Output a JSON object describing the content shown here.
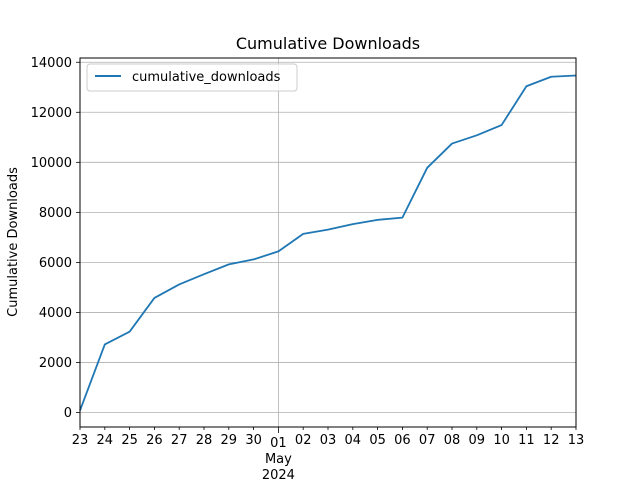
{
  "chart_data": {
    "type": "line",
    "title": "Cumulative Downloads",
    "xlabel": "",
    "ylabel": "Cumulative Downloads",
    "x": [
      "2024-04-23",
      "2024-04-24",
      "2024-04-25",
      "2024-04-26",
      "2024-04-27",
      "2024-04-28",
      "2024-04-29",
      "2024-04-30",
      "2024-05-01",
      "2024-05-02",
      "2024-05-03",
      "2024-05-04",
      "2024-05-05",
      "2024-05-06",
      "2024-05-07",
      "2024-05-08",
      "2024-05-09",
      "2024-05-10",
      "2024-05-11",
      "2024-05-12",
      "2024-05-13"
    ],
    "x_tick_labels": [
      "23",
      "24",
      "25",
      "26",
      "27",
      "28",
      "29",
      "30",
      "01",
      "02",
      "03",
      "04",
      "05",
      "06",
      "07",
      "08",
      "09",
      "10",
      "11",
      "12",
      "13"
    ],
    "x_month_label": "May",
    "x_year_label": "2024",
    "series": [
      {
        "name": "cumulative_downloads",
        "color": "#1f77b4",
        "values": [
          80,
          2720,
          3230,
          4580,
          5120,
          5530,
          5920,
          6120,
          6440,
          7140,
          7310,
          7530,
          7700,
          7790,
          9780,
          10750,
          11080,
          11490,
          13040,
          13420,
          13470
        ]
      }
    ],
    "ylim": [
      -580,
      14170
    ],
    "y_ticks": [
      0,
      2000,
      4000,
      6000,
      8000,
      10000,
      12000,
      14000
    ],
    "grid": true,
    "legend_position": "upper-left"
  }
}
